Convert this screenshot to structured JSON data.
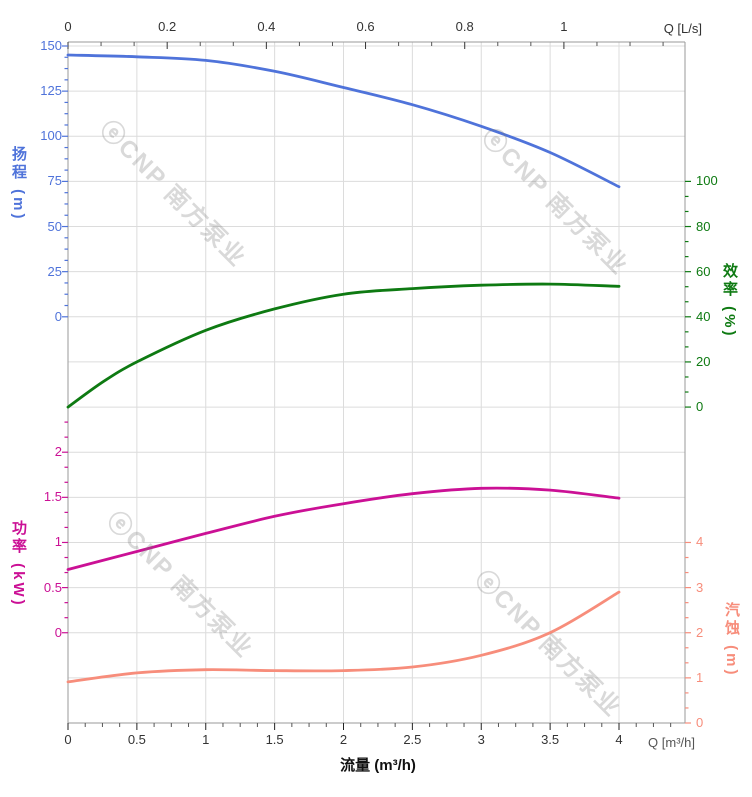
{
  "watermark": {
    "text": "ⓔCNP 南方泵业"
  },
  "axes": {
    "top": {
      "corner_label": "Q [L/s]",
      "tick_labels": [
        "0",
        "0.2",
        "0.4",
        "0.6",
        "0.8",
        "1"
      ]
    },
    "bottom": {
      "title": "流量 (m³/h)",
      "corner_label": "Q [m³/h]",
      "tick_labels": [
        "0",
        "0.5",
        "1",
        "1.5",
        "2",
        "2.5",
        "3",
        "3.5",
        "4"
      ]
    },
    "head": {
      "title": "扬程 (m)",
      "color": "#4f73da",
      "tick_labels": [
        "150",
        "125",
        "100",
        "75",
        "50",
        "25",
        "0"
      ]
    },
    "efficiency": {
      "title": "效率 (%)",
      "color": "#0e7a12",
      "tick_labels": [
        "100",
        "80",
        "60",
        "40",
        "20",
        "0"
      ]
    },
    "power": {
      "title": "功率 (kW)",
      "color": "#cb1095",
      "tick_labels": [
        "2",
        "1.5",
        "1",
        "0.5",
        "0"
      ]
    },
    "npsh": {
      "title": "汽蚀 (m)",
      "color": "#f78d7b",
      "tick_labels": [
        "4",
        "3",
        "2",
        "1",
        "0"
      ]
    }
  },
  "chart_data": {
    "type": "line",
    "title": "",
    "xlabel": "流量 (m³/h)",
    "x_top_label": "Q [L/s]",
    "xlim": [
      0,
      4
    ],
    "x_top_ticks": [
      0,
      0.2,
      0.4,
      0.6,
      0.8,
      1
    ],
    "grid": true,
    "legend_position": "none",
    "series": [
      {
        "name": "扬程",
        "unit": "m",
        "axis": "head",
        "axis_side": "left-top",
        "ylim": [
          0,
          150
        ],
        "color": "#4f73da",
        "x": [
          0,
          0.5,
          1,
          1.5,
          2,
          2.5,
          3,
          3.5,
          4
        ],
        "values": [
          145,
          144,
          142,
          136,
          127,
          117.5,
          105.5,
          91,
          72
        ]
      },
      {
        "name": "效率",
        "unit": "%",
        "axis": "efficiency",
        "axis_side": "right-top",
        "ylim": [
          0,
          100
        ],
        "color": "#0e7a12",
        "x": [
          0,
          0.25,
          0.5,
          1,
          1.5,
          2,
          2.5,
          3,
          3.5,
          4
        ],
        "values": [
          0,
          11,
          20,
          34,
          43.5,
          50,
          52.5,
          54,
          54.5,
          53.5
        ]
      },
      {
        "name": "功率",
        "unit": "kW",
        "axis": "power",
        "axis_side": "left-bottom",
        "ylim": [
          0,
          2
        ],
        "color": "#cb1095",
        "x": [
          0,
          0.5,
          1,
          1.5,
          2,
          2.5,
          3,
          3.5,
          4
        ],
        "values": [
          0.7,
          0.9,
          1.1,
          1.29,
          1.43,
          1.54,
          1.6,
          1.58,
          1.49
        ]
      },
      {
        "name": "汽蚀",
        "unit": "m",
        "axis": "npsh",
        "axis_side": "right-bottom",
        "ylim": [
          0,
          4
        ],
        "color": "#f78d7b",
        "x": [
          0,
          0.5,
          1,
          1.5,
          2,
          2.5,
          3,
          3.5,
          4
        ],
        "values": [
          0.91,
          1.11,
          1.18,
          1.16,
          1.16,
          1.24,
          1.5,
          2.0,
          2.9
        ]
      }
    ]
  }
}
